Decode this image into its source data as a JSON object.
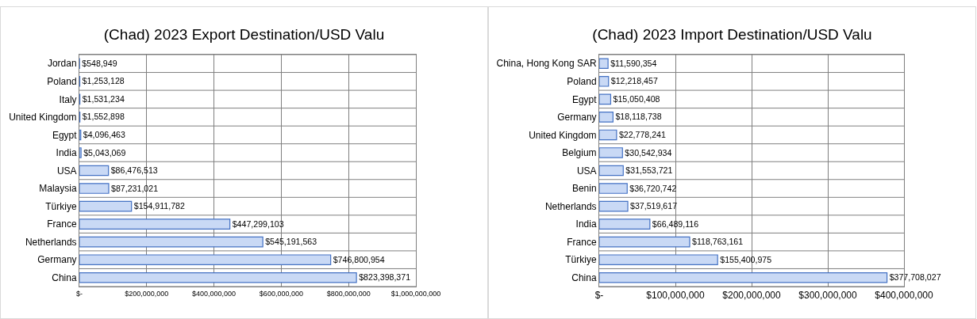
{
  "chart_data": [
    {
      "type": "bar",
      "orientation": "horizontal",
      "title": "(Chad) 2023 Export Destination/USD Valu",
      "categories": [
        "Jordan",
        "Poland",
        "Italy",
        "United Kingdom",
        "Egypt",
        "India",
        "USA",
        "Malaysia",
        "Türkiye",
        "France",
        "Netherlands",
        "Germany",
        "China"
      ],
      "values": [
        548949,
        1253128,
        1531234,
        1552898,
        4096463,
        5043069,
        86476513,
        87231021,
        154911782,
        447299103,
        545191563,
        746800954,
        823398371
      ],
      "value_labels": [
        "$548,949",
        "$1,253,128",
        "$1,531,234",
        "$1,552,898",
        "$4,096,463",
        "$5,043,069",
        "$86,476,513",
        "$87,231,021",
        "$154,911,782",
        "$447,299,103",
        "$545,191,563",
        "$746,800,954",
        "$823,398,371"
      ],
      "color": "#c9d9f5",
      "xlim": [
        0,
        1000000000
      ],
      "xticks": [
        {
          "value": 0,
          "label": "$-"
        },
        {
          "value": 200000000,
          "label": "$200,000,000"
        },
        {
          "value": 400000000,
          "label": "$400,000,000"
        },
        {
          "value": 600000000,
          "label": "$600,000,000"
        },
        {
          "value": 800000000,
          "label": "$800,000,000"
        },
        {
          "value": 1000000000,
          "label": "$1,000,000,000"
        }
      ],
      "grid": true,
      "legend": false
    },
    {
      "type": "bar",
      "orientation": "horizontal",
      "title": "(Chad) 2023 Import Destination/USD Valu",
      "categories": [
        "China, Hong Kong SAR",
        "Poland",
        "Egypt",
        "Germany",
        "United Kingdom",
        "Belgium",
        "USA",
        "Benin",
        "Netherlands",
        "India",
        "France",
        "Türkiye",
        "China"
      ],
      "values": [
        11590354,
        12218457,
        15050408,
        18118738,
        22778241,
        30542934,
        31553721,
        36720742,
        37519617,
        66489116,
        118763161,
        155400975,
        377708027
      ],
      "value_labels": [
        "$11,590,354",
        "$12,218,457",
        "$15,050,408",
        "$18,118,738",
        "$22,778,241",
        "$30,542,934",
        "$31,553,721",
        "$36,720,742",
        "$37,519,617",
        "$66,489,116",
        "$118,763,161",
        "$155,400,975",
        "$377,708,027"
      ],
      "color": "#c9d9f5",
      "xlim": [
        0,
        400000000
      ],
      "xticks": [
        {
          "value": 0,
          "label": "$-"
        },
        {
          "value": 100000000,
          "label": "$100,000,000"
        },
        {
          "value": 200000000,
          "label": "$200,000,000"
        },
        {
          "value": 300000000,
          "label": "$300,000,000"
        },
        {
          "value": 400000000,
          "label": "$400,000,000"
        }
      ],
      "grid": true,
      "legend": false
    }
  ]
}
